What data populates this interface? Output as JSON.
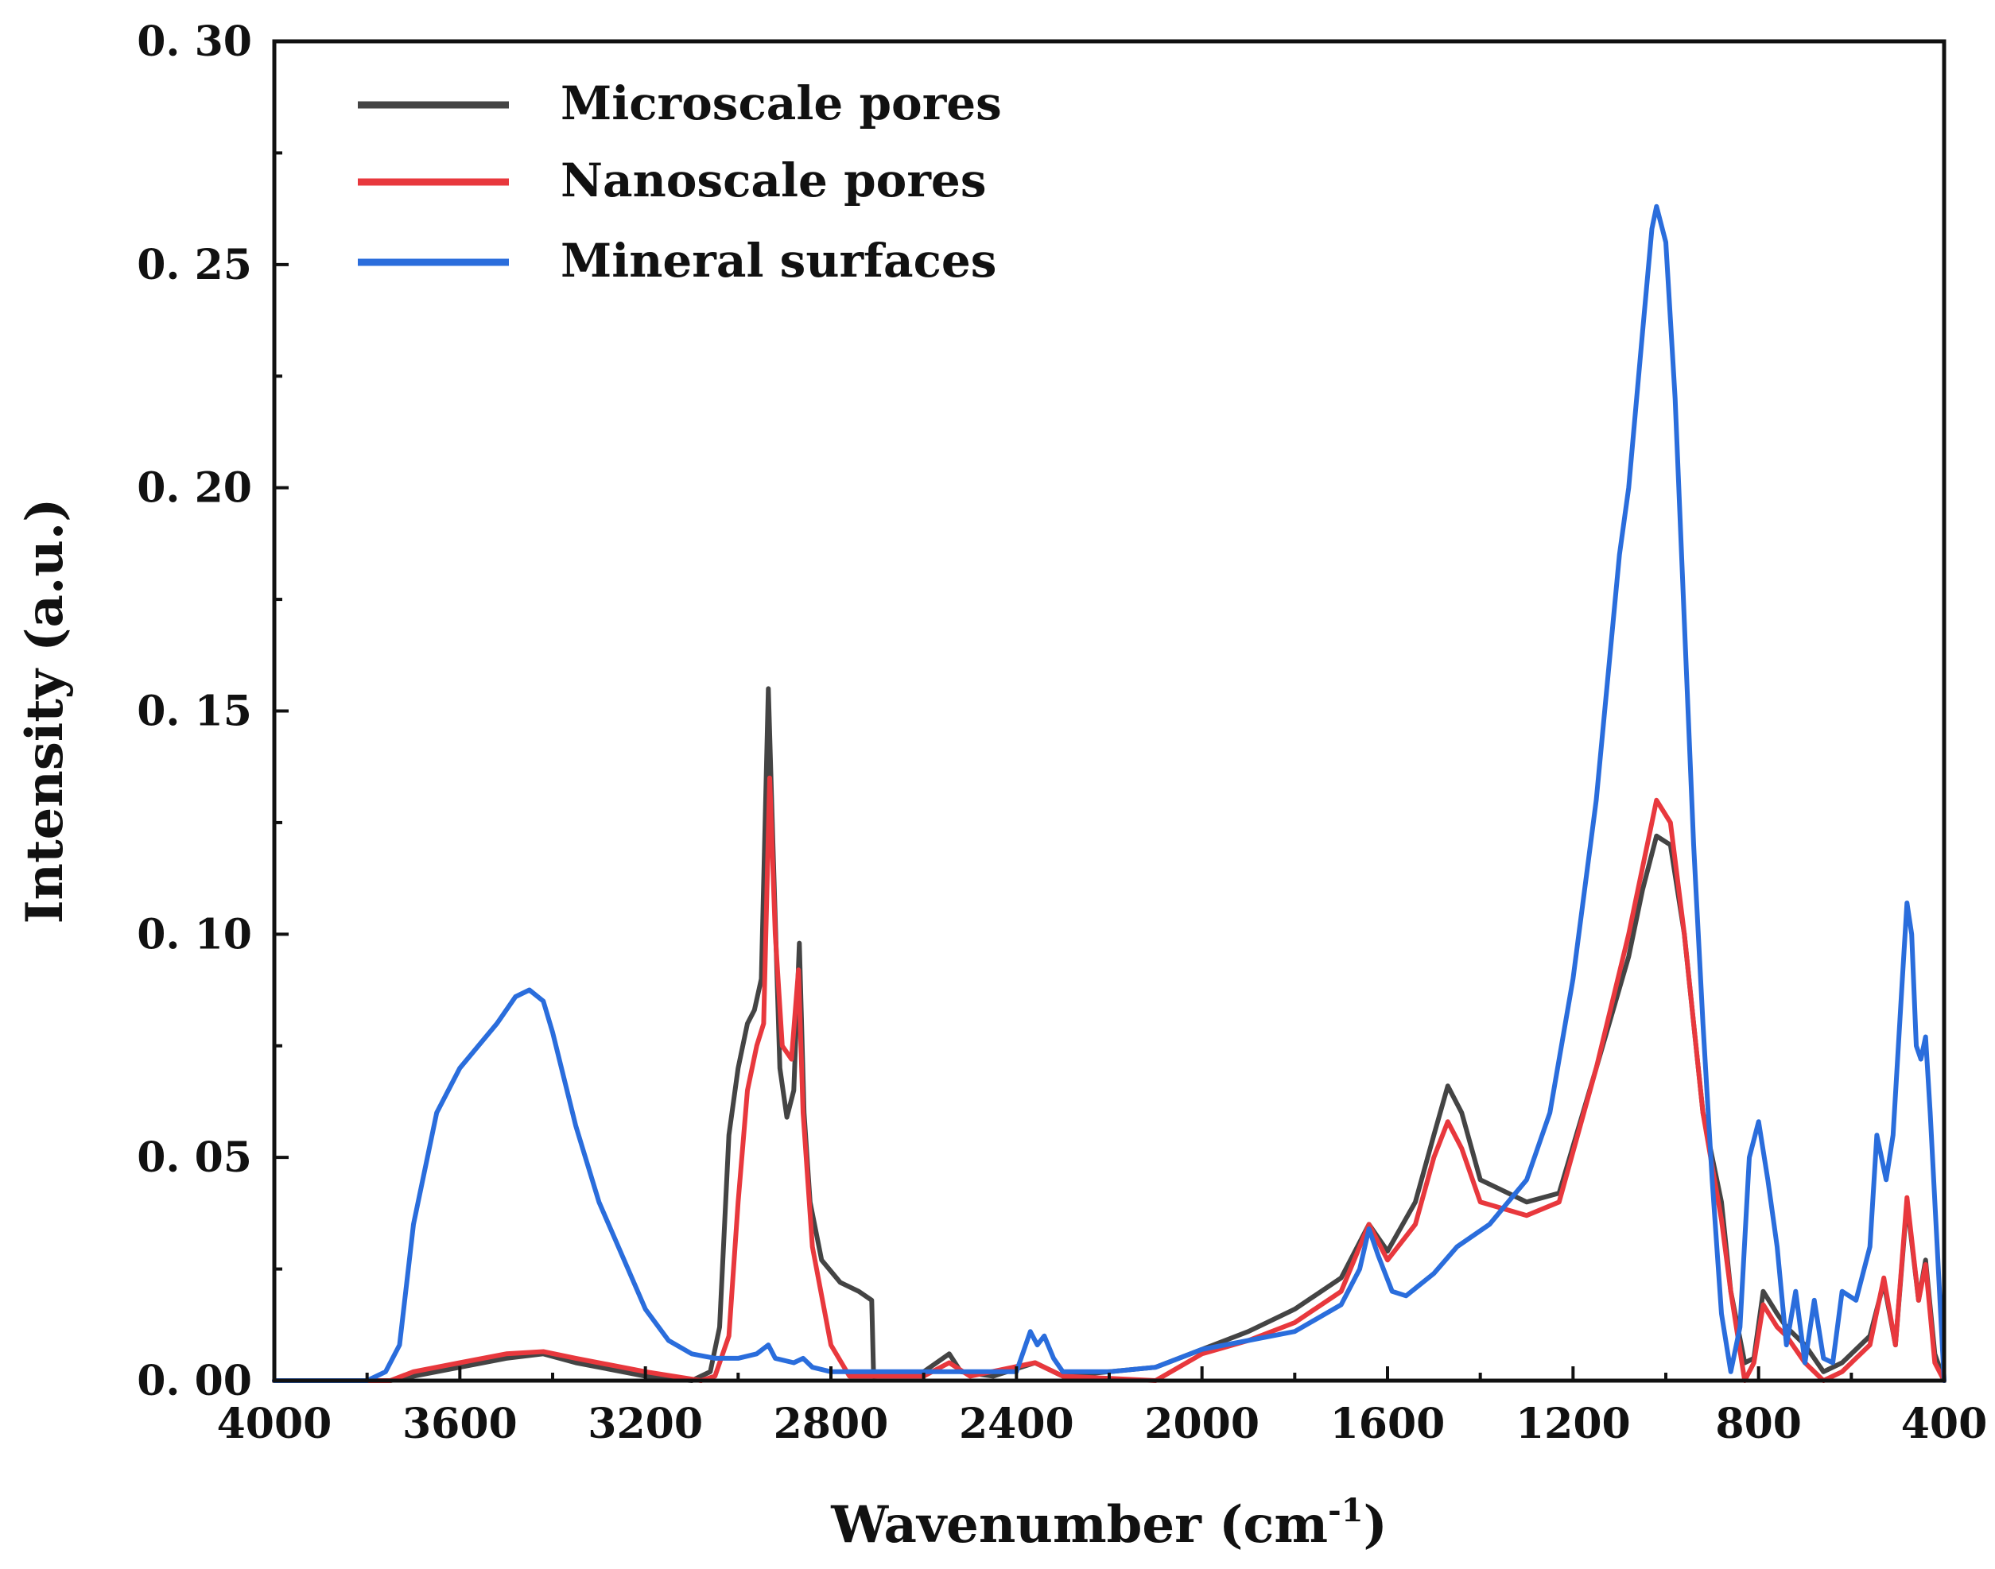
{
  "chart_data": {
    "type": "line",
    "title": "",
    "xlabel": "Wavenumber (cm",
    "xlabel_sup": "-1",
    "xlabel_close": ")",
    "ylabel": "Intensity (a.u.)",
    "xlim": [
      4000,
      400
    ],
    "ylim": [
      0,
      0.3
    ],
    "x_reversed": true,
    "grid": false,
    "legend_position": "top-left",
    "x_ticks": [
      4000,
      3600,
      3200,
      2800,
      2400,
      2000,
      1600,
      1200,
      800,
      400
    ],
    "x_tick_labels": [
      "4000",
      "3600",
      "3200",
      "2800",
      "2400",
      "2000",
      "1600",
      "1200",
      "800",
      "400"
    ],
    "y_ticks": [
      0.0,
      0.05,
      0.1,
      0.15,
      0.2,
      0.25,
      0.3
    ],
    "y_tick_labels": [
      "0. 00",
      "0. 05",
      "0. 10",
      "0. 15",
      "0. 20",
      "0. 25",
      "0. 30"
    ],
    "series": [
      {
        "name": "Microscale pores",
        "color": "#444444",
        "points": [
          [
            4000,
            0.0
          ],
          [
            3750,
            0.0
          ],
          [
            3700,
            0.001
          ],
          [
            3600,
            0.003
          ],
          [
            3500,
            0.005
          ],
          [
            3420,
            0.006
          ],
          [
            3350,
            0.004
          ],
          [
            3200,
            0.001
          ],
          [
            3100,
            0.0
          ],
          [
            3060,
            0.002
          ],
          [
            3040,
            0.012
          ],
          [
            3020,
            0.055
          ],
          [
            3000,
            0.07
          ],
          [
            2980,
            0.08
          ],
          [
            2965,
            0.083
          ],
          [
            2950,
            0.09
          ],
          [
            2935,
            0.155
          ],
          [
            2925,
            0.12
          ],
          [
            2910,
            0.07
          ],
          [
            2895,
            0.059
          ],
          [
            2880,
            0.065
          ],
          [
            2868,
            0.098
          ],
          [
            2858,
            0.06
          ],
          [
            2845,
            0.04
          ],
          [
            2820,
            0.027
          ],
          [
            2780,
            0.022
          ],
          [
            2740,
            0.02
          ],
          [
            2712,
            0.018
          ],
          [
            2708,
            0.001
          ],
          [
            2600,
            0.002
          ],
          [
            2545,
            0.006
          ],
          [
            2520,
            0.002
          ],
          [
            2450,
            0.001
          ],
          [
            2360,
            0.004
          ],
          [
            2300,
            0.001
          ],
          [
            2100,
            0.003
          ],
          [
            2000,
            0.007
          ],
          [
            1900,
            0.011
          ],
          [
            1800,
            0.016
          ],
          [
            1700,
            0.023
          ],
          [
            1640,
            0.035
          ],
          [
            1600,
            0.029
          ],
          [
            1540,
            0.04
          ],
          [
            1500,
            0.055
          ],
          [
            1470,
            0.066
          ],
          [
            1440,
            0.06
          ],
          [
            1400,
            0.045
          ],
          [
            1300,
            0.04
          ],
          [
            1230,
            0.042
          ],
          [
            1150,
            0.07
          ],
          [
            1080,
            0.095
          ],
          [
            1050,
            0.11
          ],
          [
            1020,
            0.122
          ],
          [
            990,
            0.12
          ],
          [
            960,
            0.1
          ],
          [
            920,
            0.06
          ],
          [
            880,
            0.04
          ],
          [
            860,
            0.02
          ],
          [
            830,
            0.004
          ],
          [
            810,
            0.005
          ],
          [
            790,
            0.02
          ],
          [
            760,
            0.015
          ],
          [
            740,
            0.012
          ],
          [
            700,
            0.008
          ],
          [
            660,
            0.002
          ],
          [
            620,
            0.004
          ],
          [
            590,
            0.007
          ],
          [
            560,
            0.01
          ],
          [
            530,
            0.022
          ],
          [
            505,
            0.008
          ],
          [
            480,
            0.04
          ],
          [
            455,
            0.018
          ],
          [
            440,
            0.027
          ],
          [
            420,
            0.006
          ],
          [
            400,
            0.0
          ]
        ]
      },
      {
        "name": "Nanoscale pores",
        "color": "#e8383d",
        "points": [
          [
            4000,
            0.0
          ],
          [
            3750,
            0.0
          ],
          [
            3700,
            0.002
          ],
          [
            3600,
            0.004
          ],
          [
            3500,
            0.006
          ],
          [
            3420,
            0.0065
          ],
          [
            3350,
            0.005
          ],
          [
            3200,
            0.002
          ],
          [
            3080,
            0.0
          ],
          [
            3050,
            0.001
          ],
          [
            3020,
            0.01
          ],
          [
            3000,
            0.04
          ],
          [
            2980,
            0.065
          ],
          [
            2960,
            0.075
          ],
          [
            2945,
            0.08
          ],
          [
            2932,
            0.135
          ],
          [
            2920,
            0.1
          ],
          [
            2905,
            0.075
          ],
          [
            2885,
            0.072
          ],
          [
            2870,
            0.092
          ],
          [
            2860,
            0.06
          ],
          [
            2840,
            0.03
          ],
          [
            2800,
            0.008
          ],
          [
            2760,
            0.001
          ],
          [
            2600,
            0.001
          ],
          [
            2545,
            0.004
          ],
          [
            2500,
            0.001
          ],
          [
            2360,
            0.004
          ],
          [
            2300,
            0.001
          ],
          [
            2100,
            0.0
          ],
          [
            2000,
            0.006
          ],
          [
            1900,
            0.009
          ],
          [
            1800,
            0.013
          ],
          [
            1700,
            0.02
          ],
          [
            1640,
            0.035
          ],
          [
            1600,
            0.027
          ],
          [
            1540,
            0.035
          ],
          [
            1500,
            0.05
          ],
          [
            1470,
            0.058
          ],
          [
            1440,
            0.052
          ],
          [
            1400,
            0.04
          ],
          [
            1300,
            0.037
          ],
          [
            1230,
            0.04
          ],
          [
            1150,
            0.07
          ],
          [
            1080,
            0.1
          ],
          [
            1050,
            0.115
          ],
          [
            1020,
            0.13
          ],
          [
            990,
            0.125
          ],
          [
            960,
            0.1
          ],
          [
            920,
            0.06
          ],
          [
            880,
            0.036
          ],
          [
            860,
            0.02
          ],
          [
            830,
            0.0
          ],
          [
            810,
            0.004
          ],
          [
            790,
            0.017
          ],
          [
            760,
            0.012
          ],
          [
            740,
            0.01
          ],
          [
            700,
            0.004
          ],
          [
            660,
            0.0
          ],
          [
            620,
            0.002
          ],
          [
            590,
            0.005
          ],
          [
            560,
            0.008
          ],
          [
            530,
            0.023
          ],
          [
            505,
            0.008
          ],
          [
            480,
            0.041
          ],
          [
            455,
            0.018
          ],
          [
            440,
            0.026
          ],
          [
            420,
            0.004
          ],
          [
            400,
            0.0
          ]
        ]
      },
      {
        "name": "Mineral surfaces",
        "color": "#2a6ddc",
        "points": [
          [
            4000,
            0.0
          ],
          [
            3800,
            0.0
          ],
          [
            3760,
            0.002
          ],
          [
            3730,
            0.008
          ],
          [
            3700,
            0.035
          ],
          [
            3650,
            0.06
          ],
          [
            3600,
            0.07
          ],
          [
            3520,
            0.08
          ],
          [
            3480,
            0.086
          ],
          [
            3450,
            0.0875
          ],
          [
            3420,
            0.085
          ],
          [
            3400,
            0.078
          ],
          [
            3350,
            0.057
          ],
          [
            3300,
            0.04
          ],
          [
            3250,
            0.028
          ],
          [
            3200,
            0.016
          ],
          [
            3150,
            0.009
          ],
          [
            3100,
            0.006
          ],
          [
            3050,
            0.005
          ],
          [
            3000,
            0.005
          ],
          [
            2960,
            0.006
          ],
          [
            2935,
            0.008
          ],
          [
            2920,
            0.005
          ],
          [
            2880,
            0.004
          ],
          [
            2860,
            0.005
          ],
          [
            2840,
            0.003
          ],
          [
            2800,
            0.002
          ],
          [
            2700,
            0.002
          ],
          [
            2500,
            0.002
          ],
          [
            2400,
            0.002
          ],
          [
            2370,
            0.011
          ],
          [
            2355,
            0.008
          ],
          [
            2340,
            0.01
          ],
          [
            2320,
            0.005
          ],
          [
            2300,
            0.002
          ],
          [
            2200,
            0.002
          ],
          [
            2100,
            0.003
          ],
          [
            2000,
            0.007
          ],
          [
            1900,
            0.009
          ],
          [
            1800,
            0.011
          ],
          [
            1700,
            0.017
          ],
          [
            1660,
            0.025
          ],
          [
            1640,
            0.034
          ],
          [
            1620,
            0.028
          ],
          [
            1590,
            0.02
          ],
          [
            1560,
            0.019
          ],
          [
            1500,
            0.024
          ],
          [
            1450,
            0.03
          ],
          [
            1380,
            0.035
          ],
          [
            1300,
            0.045
          ],
          [
            1250,
            0.06
          ],
          [
            1200,
            0.09
          ],
          [
            1150,
            0.13
          ],
          [
            1100,
            0.185
          ],
          [
            1080,
            0.2
          ],
          [
            1050,
            0.235
          ],
          [
            1030,
            0.258
          ],
          [
            1020,
            0.263
          ],
          [
            1000,
            0.255
          ],
          [
            980,
            0.22
          ],
          [
            960,
            0.17
          ],
          [
            940,
            0.12
          ],
          [
            920,
            0.08
          ],
          [
            900,
            0.045
          ],
          [
            880,
            0.015
          ],
          [
            860,
            0.002
          ],
          [
            840,
            0.012
          ],
          [
            820,
            0.05
          ],
          [
            800,
            0.058
          ],
          [
            780,
            0.045
          ],
          [
            760,
            0.03
          ],
          [
            740,
            0.008
          ],
          [
            720,
            0.02
          ],
          [
            700,
            0.004
          ],
          [
            680,
            0.018
          ],
          [
            660,
            0.005
          ],
          [
            640,
            0.004
          ],
          [
            620,
            0.02
          ],
          [
            590,
            0.018
          ],
          [
            560,
            0.03
          ],
          [
            545,
            0.055
          ],
          [
            525,
            0.045
          ],
          [
            510,
            0.055
          ],
          [
            490,
            0.09
          ],
          [
            480,
            0.107
          ],
          [
            470,
            0.1
          ],
          [
            460,
            0.075
          ],
          [
            450,
            0.072
          ],
          [
            440,
            0.077
          ],
          [
            430,
            0.06
          ],
          [
            415,
            0.03
          ],
          [
            400,
            0.0
          ]
        ]
      }
    ]
  }
}
